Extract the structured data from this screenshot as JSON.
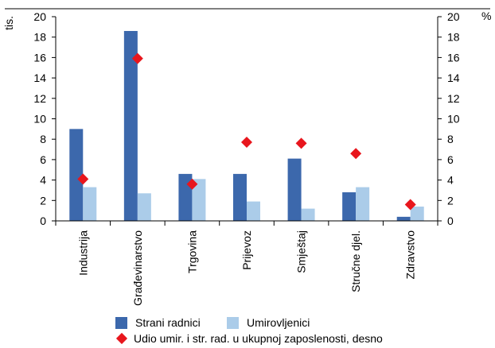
{
  "chart_data": {
    "type": "bar",
    "y_left_unit": "tis.",
    "y_right_unit": "%",
    "ylim": [
      0,
      20
    ],
    "yticks": [
      0,
      2,
      4,
      6,
      8,
      10,
      12,
      14,
      16,
      18,
      20
    ],
    "y2lim": [
      0,
      20
    ],
    "categories": [
      "Industrija",
      "Građevinarstvo",
      "Trgovina",
      "Prijevoz",
      "Smještaj",
      "Stručne djel.",
      "Zdravstvo"
    ],
    "series": [
      {
        "name": "Strani radnici",
        "kind": "bar",
        "axis": "left",
        "color": "#3c68ac",
        "values": [
          9.0,
          18.6,
          4.6,
          4.6,
          6.1,
          2.8,
          0.4
        ]
      },
      {
        "name": "Umirovljenici",
        "kind": "bar",
        "axis": "left",
        "color": "#abcce9",
        "values": [
          3.3,
          2.7,
          4.1,
          1.9,
          1.2,
          3.3,
          1.4
        ]
      },
      {
        "name": "Udio umir. i str. rad. u ukupnoj zaposlenosti, desno",
        "kind": "marker",
        "marker": "diamond",
        "axis": "right",
        "color": "#e8161d",
        "values": [
          4.1,
          15.9,
          3.6,
          7.7,
          7.6,
          6.6,
          1.6
        ]
      }
    ],
    "grid": false,
    "legend_position": "bottom"
  }
}
